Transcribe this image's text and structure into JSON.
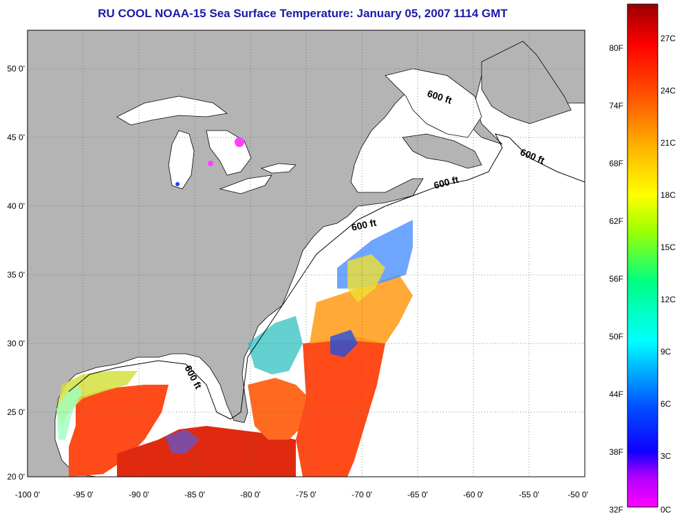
{
  "title": "RU COOL  NOAA-15  Sea Surface Temperature:  January 05, 2007 1114 GMT",
  "map": {
    "lon_range": [
      -100,
      -50
    ],
    "lat_range": [
      20,
      52.5
    ],
    "lon_ticks": [
      "-100 0'",
      "-95 0'",
      "-90 0'",
      "-85 0'",
      "-80 0'",
      "-75 0'",
      "-70 0'",
      "-65 0'",
      "-60 0'",
      "-55 0'",
      "-50 0'"
    ],
    "lat_ticks": [
      "20 0'",
      "25 0'",
      "30 0'",
      "35 0'",
      "40 0'",
      "45 0'",
      "50 0'"
    ],
    "grid": "dotted",
    "contour_label": "600 ft",
    "colors": {
      "land": "#b4b4b4",
      "no_data": "#ffffff",
      "title": "#1a1aa8"
    }
  },
  "colorbar": {
    "fahrenheit_labels": [
      "32F",
      "38F",
      "44F",
      "50F",
      "56F",
      "62F",
      "68F",
      "74F",
      "80F"
    ],
    "celsius_labels": [
      "0C",
      "3C",
      "6C",
      "9C",
      "12C",
      "15C",
      "18C",
      "21C",
      "24C",
      "27C"
    ],
    "gradient": [
      "#ff00ff",
      "#9900ff",
      "#0000ff",
      "#0080ff",
      "#00ffff",
      "#00ff80",
      "#80ff00",
      "#ffff00",
      "#ffaa00",
      "#ff5500",
      "#ff0000",
      "#aa0000"
    ]
  }
}
